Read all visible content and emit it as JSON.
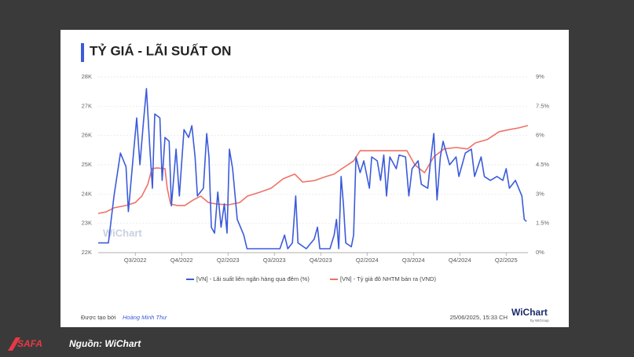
{
  "chart_data": {
    "type": "line",
    "title": "TỶ GIÁ - LÃI SUẤT ON",
    "xlim": [
      -0.8,
      8.47
    ],
    "xticks": [
      {
        "value": 0,
        "label": "Q3/2022"
      },
      {
        "value": 1,
        "label": "Q4/2022"
      },
      {
        "value": 2,
        "label": "Q2/2023"
      },
      {
        "value": 3,
        "label": "Q3/2023"
      },
      {
        "value": 4,
        "label": "Q4/2023"
      },
      {
        "value": 5,
        "label": "Q2/2024"
      },
      {
        "value": 6,
        "label": "Q3/2024"
      },
      {
        "value": 7,
        "label": "Q4/2024"
      },
      {
        "value": 8,
        "label": "Q2/2025"
      }
    ],
    "ylim": [
      22000,
      28000
    ],
    "yticks": [
      {
        "value": 22000,
        "label": "22K"
      },
      {
        "value": 23000,
        "label": "23K"
      },
      {
        "value": 24000,
        "label": "24K"
      },
      {
        "value": 25000,
        "label": "25K"
      },
      {
        "value": 26000,
        "label": "26K"
      },
      {
        "value": 27000,
        "label": "27K"
      },
      {
        "value": 28000,
        "label": "28K"
      }
    ],
    "y2lim": [
      0,
      9
    ],
    "y2ticks": [
      {
        "value": 0,
        "label": "0%"
      },
      {
        "value": 1.5,
        "label": "1.5%"
      },
      {
        "value": 3,
        "label": "3%"
      },
      {
        "value": 4.5,
        "label": "4.5%"
      },
      {
        "value": 6,
        "label": "6%"
      },
      {
        "value": 7.5,
        "label": "7.5%"
      },
      {
        "value": 9,
        "label": "9%"
      }
    ],
    "grid": true,
    "legend": "bottom",
    "series": [
      {
        "name": "[VN] - Lãi suất liên ngân hàng qua đêm (%)",
        "color": "#3b5bdb",
        "axis": "y2",
        "x": [
          -0.8,
          -0.58,
          -0.46,
          -0.32,
          -0.2,
          -0.15,
          -0.03,
          0.03,
          0.1,
          0.17,
          0.24,
          0.31,
          0.37,
          0.42,
          0.53,
          0.58,
          0.64,
          0.73,
          0.78,
          0.88,
          0.95,
          1.05,
          1.15,
          1.22,
          1.29,
          1.34,
          1.47,
          1.54,
          1.59,
          1.64,
          1.71,
          1.78,
          1.85,
          1.92,
          1.98,
          2.03,
          2.1,
          2.2,
          2.34,
          2.41,
          2.68,
          3.02,
          3.12,
          3.22,
          3.29,
          3.39,
          3.46,
          3.51,
          3.69,
          3.86,
          3.93,
          3.98,
          4.2,
          4.29,
          4.34,
          4.39,
          4.44,
          4.49,
          4.54,
          4.66,
          4.71,
          4.76,
          4.85,
          4.93,
          5.05,
          5.1,
          5.22,
          5.29,
          5.36,
          5.42,
          5.49,
          5.63,
          5.69,
          5.83,
          5.9,
          5.97,
          6.1,
          6.17,
          6.31,
          6.37,
          6.44,
          6.51,
          6.58,
          6.64,
          6.78,
          6.92,
          6.98,
          7.12,
          7.25,
          7.32,
          7.46,
          7.53,
          7.66,
          7.8,
          7.93,
          8.0,
          8.07,
          8.2,
          8.27,
          8.34,
          8.39,
          8.44
        ],
        "values": [
          0.5,
          0.5,
          2.9,
          5.1,
          4.4,
          2.1,
          5.3,
          6.9,
          4.5,
          6.5,
          8.4,
          5.5,
          3.3,
          7.1,
          6.9,
          3.7,
          5.9,
          5.7,
          2.4,
          5.3,
          2.9,
          6.3,
          5.9,
          6.5,
          4.9,
          2.9,
          3.3,
          6.1,
          4.9,
          1.3,
          1.0,
          3.1,
          1.3,
          2.5,
          1.0,
          5.3,
          4.3,
          1.7,
          0.9,
          0.2,
          0.2,
          0.2,
          0.2,
          0.9,
          0.2,
          0.5,
          2.9,
          0.5,
          0.2,
          0.7,
          1.3,
          0.2,
          0.2,
          0.9,
          1.7,
          0.2,
          3.9,
          2.5,
          0.5,
          0.3,
          0.9,
          4.9,
          4.1,
          4.7,
          3.3,
          4.9,
          4.7,
          3.7,
          5.0,
          2.9,
          4.9,
          4.3,
          5.0,
          4.9,
          2.9,
          4.3,
          4.7,
          3.5,
          3.3,
          4.7,
          6.1,
          2.7,
          4.9,
          5.7,
          4.5,
          4.9,
          3.9,
          5.1,
          5.3,
          3.9,
          4.9,
          3.9,
          3.7,
          3.9,
          3.7,
          4.3,
          3.3,
          3.7,
          3.3,
          2.9,
          1.7,
          1.6
        ]
      },
      {
        "name": "[VN] - Tỷ giá đô NHTM bán ra (VND)",
        "color": "#f07167",
        "x": [
          -0.8,
          -0.63,
          -0.46,
          -0.2,
          0,
          0.14,
          0.27,
          0.36,
          0.47,
          0.64,
          0.69,
          0.76,
          0.9,
          1.07,
          1.24,
          1.41,
          1.58,
          1.75,
          2.0,
          2.25,
          2.42,
          2.68,
          2.93,
          3.19,
          3.44,
          3.61,
          3.86,
          4.12,
          4.29,
          4.46,
          4.71,
          4.85,
          5.05,
          5.39,
          5.63,
          5.86,
          6.03,
          6.24,
          6.44,
          6.66,
          6.92,
          7.17,
          7.34,
          7.59,
          7.85,
          8.1,
          8.27,
          8.47
        ],
        "values": [
          23340,
          23390,
          23530,
          23610,
          23710,
          23930,
          24330,
          24870,
          24890,
          24870,
          24200,
          23660,
          23610,
          23610,
          23790,
          23930,
          23710,
          23660,
          23630,
          23710,
          23930,
          24060,
          24200,
          24520,
          24680,
          24410,
          24460,
          24600,
          24680,
          24870,
          25130,
          25480,
          25480,
          25480,
          25480,
          25480,
          25000,
          24730,
          25270,
          25540,
          25590,
          25540,
          25750,
          25860,
          26130,
          26210,
          26260,
          26340
        ]
      }
    ]
  },
  "watermark": "WiChart",
  "footer": {
    "created_by": "Được tạo bởi",
    "author": "Hoàng Minh Thư",
    "timestamp": "25/06/2025, 15:33 CH",
    "logo": "WiChart",
    "logo_sub": "by WiGroup"
  },
  "source": {
    "brand": "SAFA",
    "text": "Nguồn: WiChart"
  }
}
